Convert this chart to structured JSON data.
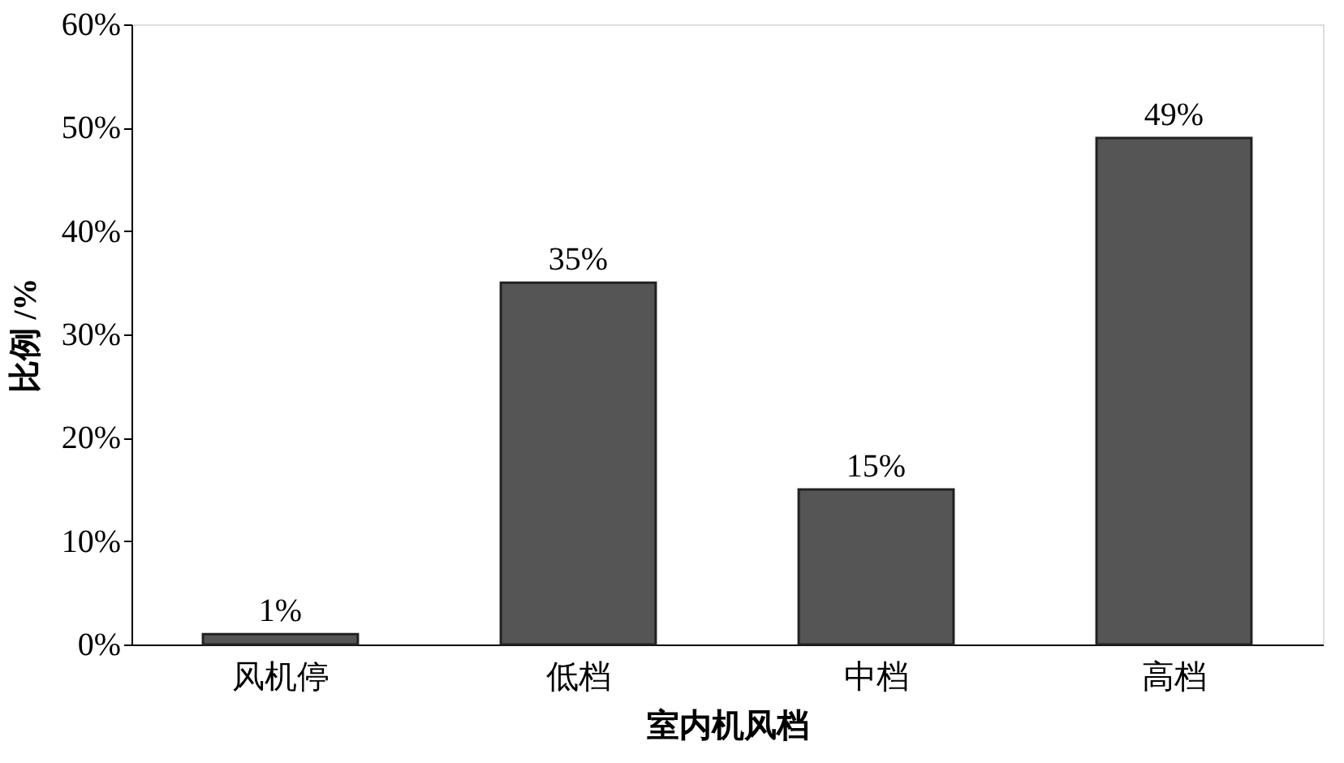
{
  "chart_data": {
    "type": "bar",
    "xlabel": "室内机风档",
    "ylabel": "比例 /%",
    "categories": [
      "风机停",
      "低档",
      "中档",
      "高档"
    ],
    "values": [
      1,
      35,
      15,
      49
    ],
    "value_labels": [
      "1%",
      "35%",
      "15%",
      "49%"
    ],
    "color": "#555555",
    "ylim": [
      0,
      60
    ],
    "yticks": [
      {
        "value": 0,
        "label": "0%"
      },
      {
        "value": 10,
        "label": "10%"
      },
      {
        "value": 20,
        "label": "20%"
      },
      {
        "value": 30,
        "label": "30%"
      },
      {
        "value": 40,
        "label": "40%"
      },
      {
        "value": 50,
        "label": "50%"
      },
      {
        "value": 60,
        "label": "60%"
      }
    ],
    "grid": false
  }
}
